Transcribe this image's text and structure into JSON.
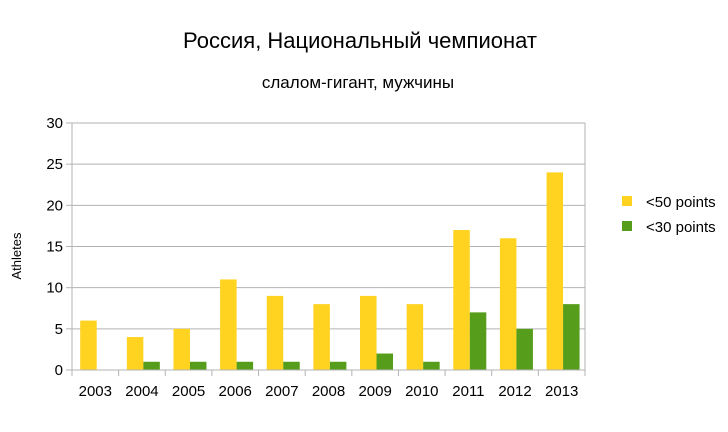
{
  "chart_data": {
    "type": "bar",
    "title": "Россия, Национальный чемпионат",
    "subtitle": "слалом-гигант, мужчины",
    "xlabel": "",
    "ylabel": "Athletes",
    "ylim": [
      0,
      30
    ],
    "yticks": [
      0,
      5,
      10,
      15,
      20,
      25,
      30
    ],
    "grid": true,
    "legend_position": "right",
    "categories": [
      "2003",
      "2004",
      "2005",
      "2006",
      "2007",
      "2008",
      "2009",
      "2010",
      "2011",
      "2012",
      "2013"
    ],
    "series": [
      {
        "name": "<50 points",
        "color": "#ffd320",
        "values": [
          6,
          4,
          5,
          11,
          9,
          8,
          9,
          8,
          17,
          16,
          24
        ]
      },
      {
        "name": "<30 points",
        "color": "#579d1c",
        "values": [
          0,
          1,
          1,
          1,
          1,
          1,
          2,
          1,
          7,
          5,
          8
        ]
      }
    ]
  }
}
